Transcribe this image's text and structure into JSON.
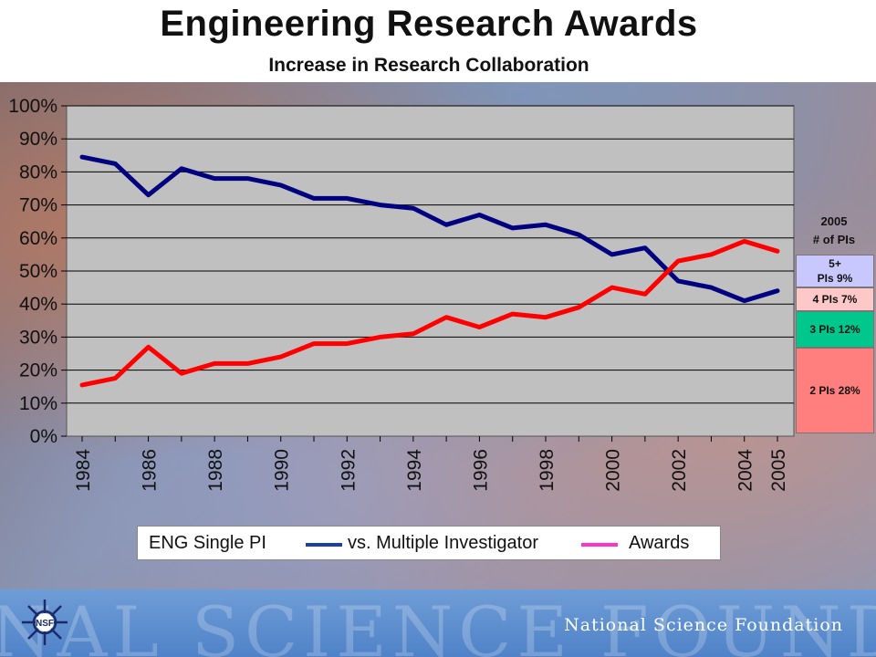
{
  "header": {
    "title": "Engineering Research Awards",
    "subtitle": "Increase in Research Collaboration"
  },
  "chart_data": {
    "type": "line",
    "x": [
      1984,
      1985,
      1986,
      1987,
      1988,
      1989,
      1990,
      1991,
      1992,
      1993,
      1994,
      1995,
      1996,
      1997,
      1998,
      1999,
      2000,
      2001,
      2002,
      2003,
      2004,
      2005
    ],
    "x_tick_labels": [
      "1984",
      "1986",
      "1988",
      "1990",
      "1992",
      "1994",
      "1996",
      "1998",
      "2000",
      "2002",
      "2004",
      "2005"
    ],
    "y_tick_labels": [
      "0%",
      "10%",
      "20%",
      "30%",
      "40%",
      "50%",
      "60%",
      "70%",
      "80%",
      "90%",
      "100%"
    ],
    "ylim": [
      0,
      100
    ],
    "grid": true,
    "series": [
      {
        "name": "ENG Single PI",
        "color": "#000080",
        "values": [
          84.5,
          82.5,
          73,
          81,
          78,
          78,
          76,
          72,
          72,
          70,
          69,
          64,
          67,
          63,
          64,
          61,
          55,
          57,
          47,
          45,
          41,
          44
        ]
      },
      {
        "name": "Multiple Investigator",
        "color": "#ff0000",
        "values": [
          15.5,
          17.5,
          27,
          19,
          22,
          22,
          24,
          28,
          28,
          30,
          31,
          36,
          33,
          37,
          36,
          39,
          45,
          43,
          53,
          55,
          59,
          56
        ]
      }
    ]
  },
  "legend": {
    "label_1": "ENG Single PI",
    "label_2": "vs. Multiple Investigator",
    "label_3": "Awards",
    "swatch_1_color": "#1f3fa8",
    "swatch_2_color": "#ff33cc"
  },
  "side_panel": {
    "year": "2005",
    "heading": "# of PIs",
    "segments": [
      {
        "label_a": "5+",
        "label_b": "PIs  9%",
        "color": "#c8c8ff",
        "value": 9
      },
      {
        "label_a": "4 PIs 7%",
        "color": "#ffc8c8",
        "value": 7
      },
      {
        "label_a": "3 PIs 12%",
        "color": "#00c88c",
        "value": 12
      },
      {
        "label_a": "2 PIs 28%",
        "color": "#ff7f7f",
        "value": 28
      }
    ]
  },
  "footer": {
    "background_text": "NAL SCIENCE FOUND",
    "organization": "National Science Foundation",
    "logo_text": "NSF"
  }
}
